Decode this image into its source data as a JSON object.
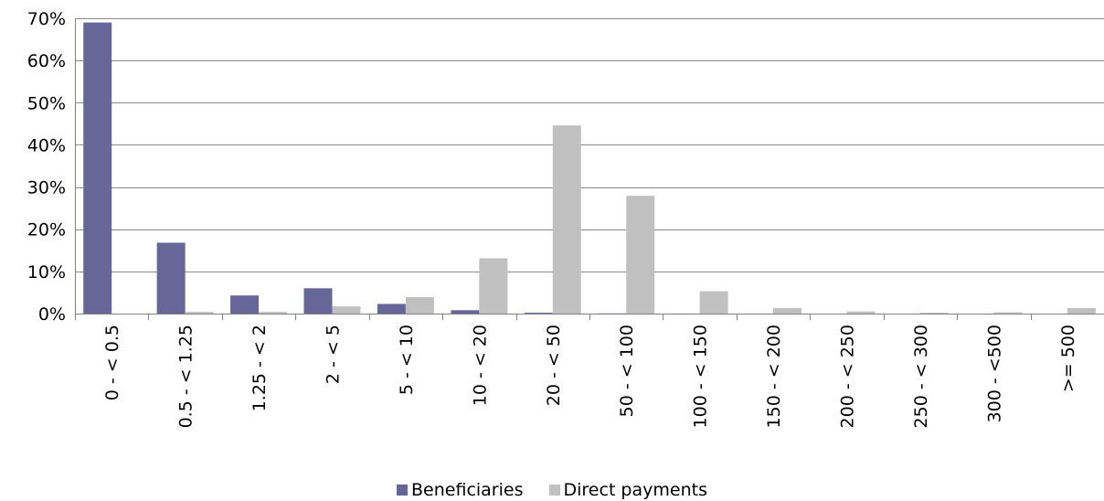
{
  "chart_data": {
    "type": "bar",
    "title": "",
    "xlabel": "",
    "ylabel": "",
    "categories": [
      "0 - < 0.5",
      "0.5 - < 1.25",
      "1.25 - < 2",
      "2 - < 5",
      "5 - < 10",
      "10 - < 20",
      "20 - < 50",
      "50 - < 100",
      "100 - < 150",
      "150 - < 200",
      "200 - < 250",
      "250 - < 300",
      "300 - <500",
      ">= 500"
    ],
    "series": [
      {
        "name": "Beneficiaries",
        "color": "#666699",
        "values": [
          69.0,
          16.8,
          4.3,
          6.0,
          2.3,
          0.8,
          0.2,
          0.05,
          0.02,
          0.01,
          0.0,
          0.0,
          0.0,
          0.0
        ]
      },
      {
        "name": "Direct payments",
        "color": "#c0c0c0",
        "values": [
          0.0,
          0.4,
          0.4,
          1.7,
          3.9,
          13.1,
          44.6,
          27.9,
          5.3,
          1.3,
          0.5,
          0.2,
          0.3,
          1.3
        ]
      }
    ],
    "ylim": [
      0,
      70
    ],
    "yticks": [
      0,
      10,
      20,
      30,
      40,
      50,
      60,
      70
    ],
    "ytick_labels": [
      "0%",
      "10%",
      "20%",
      "30%",
      "40%",
      "50%",
      "60%",
      "70%"
    ],
    "grid": true,
    "legend_position": "bottom"
  }
}
